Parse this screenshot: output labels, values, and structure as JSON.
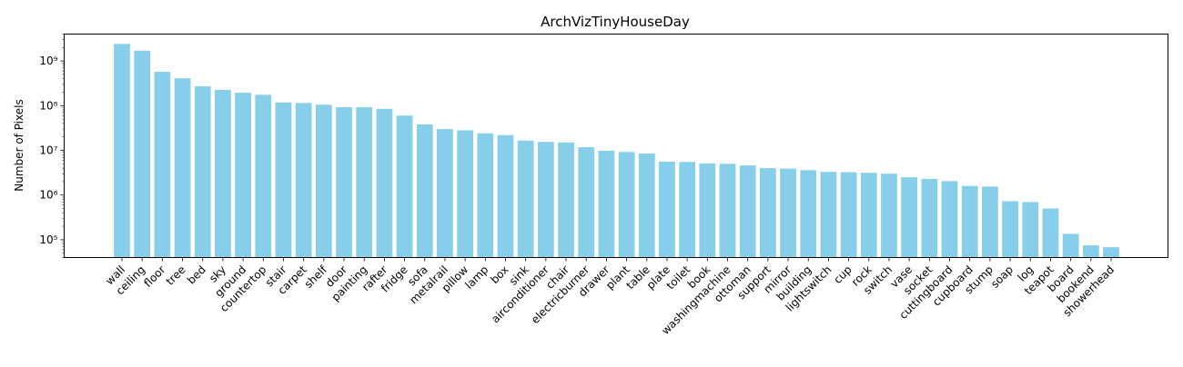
{
  "chart_data": {
    "type": "bar",
    "title": "ArchVizTinyHouseDay",
    "xlabel": "",
    "ylabel": "Number of Pixels",
    "yscale": "log",
    "ylim": [
      40000,
      4000000000
    ],
    "grid": false,
    "bar_color": "#87ceeb",
    "categories": [
      "wall",
      "ceiling",
      "floor",
      "tree",
      "bed",
      "sky",
      "ground",
      "countertop",
      "stair",
      "carpet",
      "shelf",
      "door",
      "painting",
      "rafter",
      "fridge",
      "sofa",
      "metalrail",
      "pillow",
      "lamp",
      "box",
      "sink",
      "airconditioner",
      "chair",
      "electricburner",
      "drawer",
      "plant",
      "table",
      "plate",
      "toilet",
      "book",
      "washingmachine",
      "ottoman",
      "support",
      "mirror",
      "building",
      "lightswitch",
      "cup",
      "rock",
      "switch",
      "vase",
      "socket",
      "cuttingboard",
      "cupboard",
      "stump",
      "soap",
      "log",
      "teapot",
      "board",
      "bookend",
      "showerhead"
    ],
    "values": [
      2400000000,
      1700000000,
      570000000,
      410000000,
      270000000,
      225000000,
      195000000,
      175000000,
      118000000,
      115000000,
      105000000,
      93000000,
      92000000,
      85000000,
      60000000,
      38000000,
      30000000,
      28000000,
      24000000,
      22000000,
      16500000,
      15500000,
      15000000,
      11800000,
      9800000,
      9200000,
      8500000,
      5600000,
      5500000,
      5100000,
      5000000,
      4600000,
      4000000,
      3900000,
      3600000,
      3300000,
      3250000,
      3150000,
      3000000,
      2500000,
      2300000,
      2050000,
      1600000,
      1550000,
      730000,
      700000,
      500000,
      135000,
      75000,
      68000
    ],
    "yticks": [
      {
        "value": 100000,
        "label": "10⁵"
      },
      {
        "value": 1000000,
        "label": "10⁶"
      },
      {
        "value": 10000000,
        "label": "10⁷"
      },
      {
        "value": 100000000,
        "label": "10⁸"
      },
      {
        "value": 1000000000,
        "label": "10⁹"
      }
    ]
  }
}
